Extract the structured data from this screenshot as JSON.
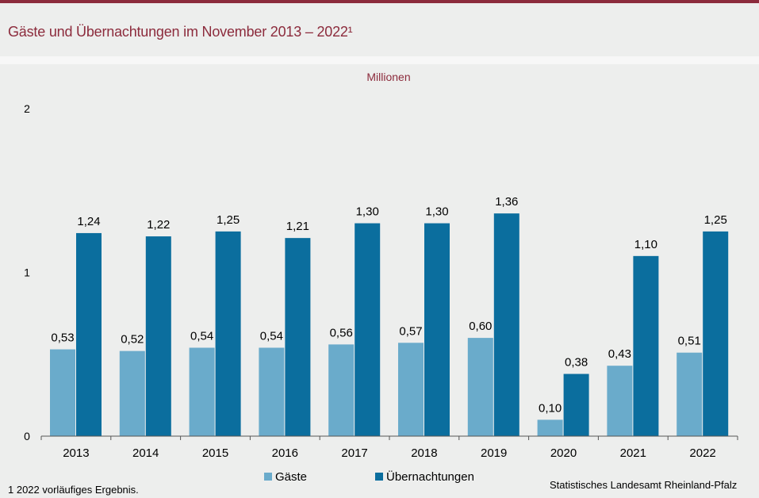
{
  "header": {
    "title": "Gäste und Übernachtungen im November 2013 – 2022¹"
  },
  "colors": {
    "accent": "#8c2b3c",
    "gaeste": "#6aabcb",
    "uebernachtungen": "#0b6e9e"
  },
  "chart_data": {
    "type": "bar",
    "unit_label": "Millionen",
    "categories": [
      "2013",
      "2014",
      "2015",
      "2016",
      "2017",
      "2018",
      "2019",
      "2020",
      "2021",
      "2022"
    ],
    "series": [
      {
        "name": "Gäste",
        "values": [
          0.53,
          0.52,
          0.54,
          0.54,
          0.56,
          0.57,
          0.6,
          0.1,
          0.43,
          0.51
        ],
        "labels": [
          "0,53",
          "0,52",
          "0,54",
          "0,54",
          "0,56",
          "0,57",
          "0,60",
          "0,10",
          "0,43",
          "0,51"
        ]
      },
      {
        "name": "Übernachtungen",
        "values": [
          1.24,
          1.22,
          1.25,
          1.21,
          1.3,
          1.3,
          1.36,
          0.38,
          1.1,
          1.25
        ],
        "labels": [
          "1,24",
          "1,22",
          "1,25",
          "1,21",
          "1,30",
          "1,30",
          "1,36",
          "0,38",
          "1,10",
          "1,25"
        ]
      }
    ],
    "ylim": [
      0,
      2
    ],
    "yticks": [
      0,
      1,
      2
    ],
    "ytick_labels": [
      "0",
      "1",
      "2"
    ],
    "legend_position": "bottom"
  },
  "footer": {
    "footnote": "1 2022 vorläufiges Ergebnis.",
    "source": "Statistisches Landesamt  Rheinland-Pfalz"
  }
}
